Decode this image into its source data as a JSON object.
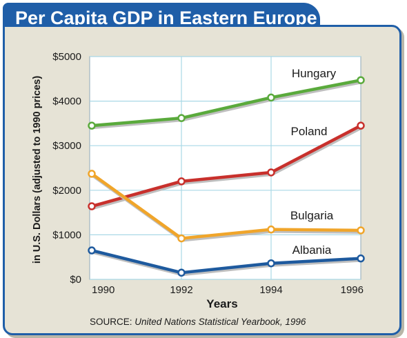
{
  "chart_data": {
    "type": "line",
    "title": "Per Capita GDP in Eastern Europe",
    "xlabel": "Years",
    "ylabel": "in U.S. Dollars (adjusted to 1990 prices)",
    "x": [
      1990,
      1992,
      1994,
      1996
    ],
    "x_tick_labels": [
      "1990",
      "1992",
      "1994",
      "1996"
    ],
    "ylim": [
      0,
      5000
    ],
    "y_ticks": [
      0,
      1000,
      2000,
      3000,
      4000,
      5000
    ],
    "y_tick_labels": [
      "$0",
      "$1000",
      "$2000",
      "$3000",
      "$4000",
      "$5000"
    ],
    "grid": true,
    "series": [
      {
        "name": "Hungary",
        "color": "#5aaa3c",
        "values": [
          3450,
          3620,
          4080,
          4470
        ]
      },
      {
        "name": "Poland",
        "color": "#c8302c",
        "values": [
          1640,
          2200,
          2400,
          3450
        ]
      },
      {
        "name": "Bulgaria",
        "color": "#f0a52a",
        "values": [
          2370,
          920,
          1120,
          1100
        ]
      },
      {
        "name": "Albania",
        "color": "#1e5a9e",
        "values": [
          650,
          150,
          360,
          470
        ]
      }
    ],
    "source_prefix": "SOURCE: ",
    "source": "United Nations Statistical Yearbook, 1996"
  }
}
